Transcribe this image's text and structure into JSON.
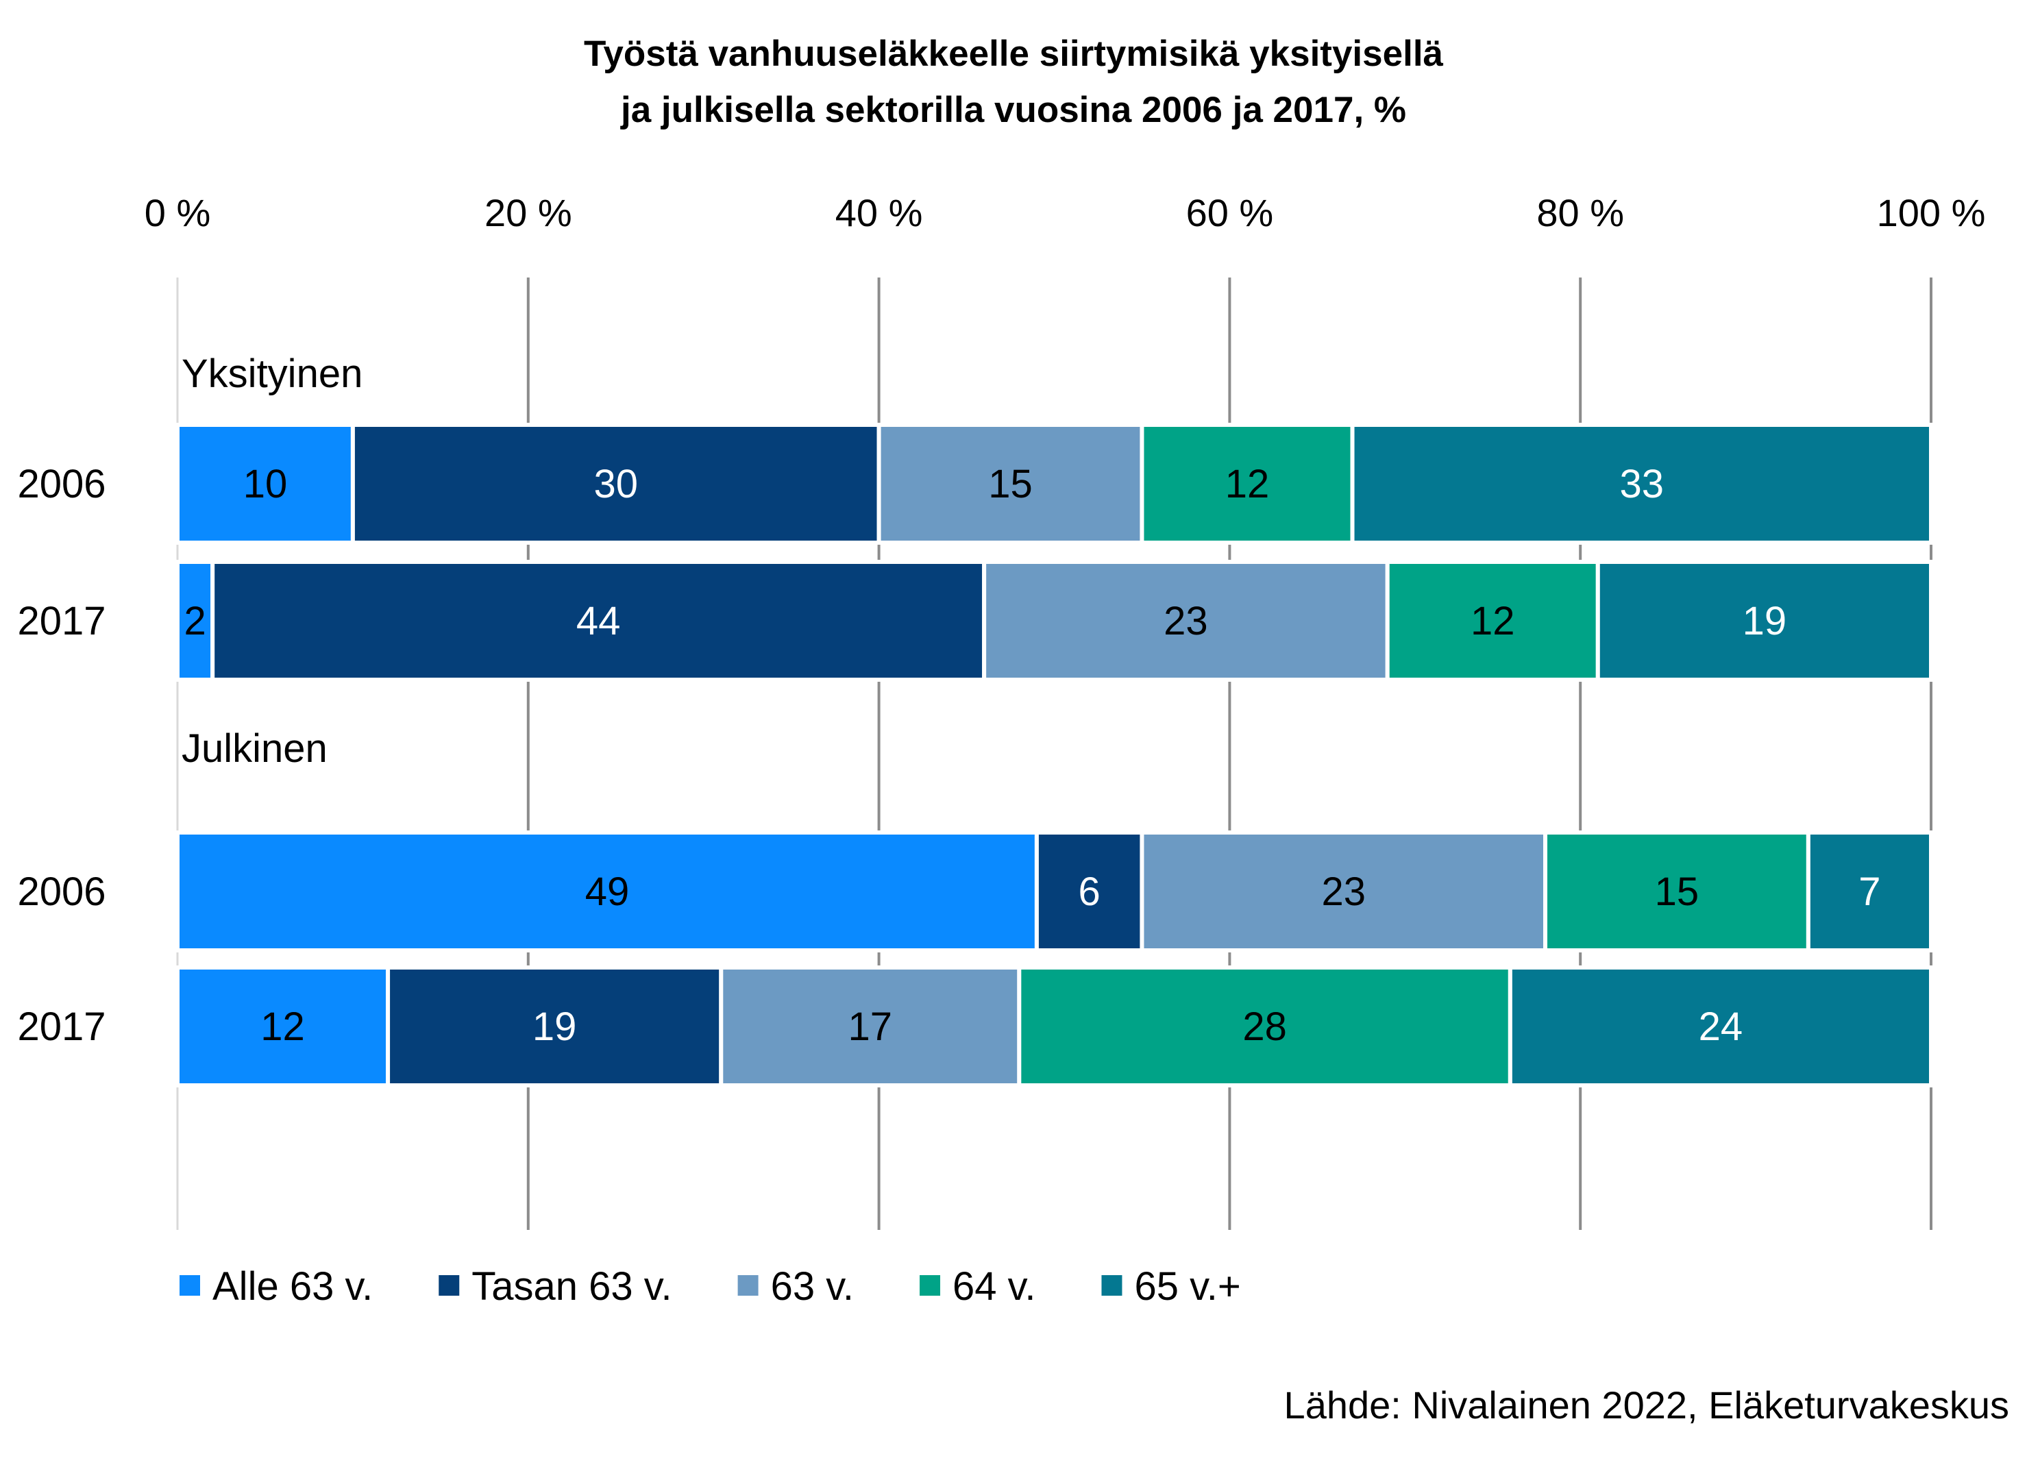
{
  "chart_data": {
    "type": "bar",
    "orientation": "horizontal",
    "stacked": "percent",
    "title": [
      "Työstä vanhuuseläkkeelle siirtymisikä yksityisellä",
      "ja julkisella sektorilla vuosina 2006 ja 2017, %"
    ],
    "x_ticks": [
      "0 %",
      "20 %",
      "40 %",
      "60 %",
      "80 %",
      "100 %"
    ],
    "xlim": [
      0,
      100
    ],
    "x_axis_position": "top",
    "grid": true,
    "legend_position": "bottom-left",
    "groups": [
      {
        "label": "Yksityinen",
        "rows": [
          {
            "year": "2006",
            "values": [
              10,
              30,
              15,
              12,
              33
            ],
            "labels": [
              "10",
              "30",
              "15",
              "12",
              "33"
            ]
          },
          {
            "year": "2017",
            "values": [
              2,
              44,
              23,
              12,
              19
            ],
            "labels": [
              "2",
              "44",
              "23",
              "12",
              "19"
            ]
          }
        ]
      },
      {
        "label": "Julkinen",
        "rows": [
          {
            "year": "2006",
            "values": [
              49,
              6,
              23,
              15,
              7
            ],
            "labels": [
              "49",
              "6",
              "23",
              "15",
              "7"
            ]
          },
          {
            "year": "2017",
            "values": [
              12,
              19,
              17,
              28,
              24
            ],
            "labels": [
              "12",
              "19",
              "17",
              "28",
              "24"
            ]
          }
        ]
      }
    ],
    "series": [
      {
        "name": "Alle 63 v.",
        "color": "#0A8AFF",
        "label_color": "#000000"
      },
      {
        "name": "Tasan 63 v.",
        "color": "#053F79",
        "label_color": "#FFFFFF"
      },
      {
        "name": "63 v.",
        "color": "#6C9AC3",
        "label_color": "#000000"
      },
      {
        "name": "64 v.",
        "color": "#00A387",
        "label_color": "#000000"
      },
      {
        "name": "65 v.+",
        "color": "#047891",
        "label_color": "#FFFFFF"
      }
    ]
  },
  "source": "Lähde: Nivalainen 2022, Eläketurvakeskus"
}
